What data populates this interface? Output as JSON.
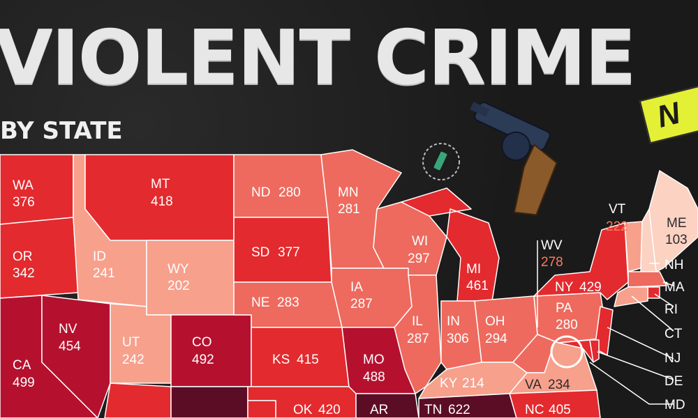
{
  "title": "VIOLENT CRIME",
  "subtitle": "BY STATE",
  "logo": "N",
  "states": {
    "WA": {
      "abbr": "WA",
      "value": "376"
    },
    "OR": {
      "abbr": "OR",
      "value": "342"
    },
    "CA": {
      "abbr": "CA",
      "value": "499"
    },
    "ID": {
      "abbr": "ID",
      "value": "241"
    },
    "NV": {
      "abbr": "NV",
      "value": "454"
    },
    "MT": {
      "abbr": "MT",
      "value": "418"
    },
    "WY": {
      "abbr": "WY",
      "value": "202"
    },
    "UT": {
      "abbr": "UT",
      "value": "242"
    },
    "CO": {
      "abbr": "CO",
      "value": "492"
    },
    "ND": {
      "abbr": "ND",
      "value": "280"
    },
    "SD": {
      "abbr": "SD",
      "value": "377"
    },
    "NE": {
      "abbr": "NE",
      "value": "283"
    },
    "KS": {
      "abbr": "KS",
      "value": "415"
    },
    "OK": {
      "abbr": "OK",
      "value": "420"
    },
    "MN": {
      "abbr": "MN",
      "value": "281"
    },
    "IA": {
      "abbr": "IA",
      "value": "287"
    },
    "MO": {
      "abbr": "MO",
      "value": "488"
    },
    "AR": {
      "abbr": "AR",
      "value": ""
    },
    "WI": {
      "abbr": "WI",
      "value": "297"
    },
    "IL": {
      "abbr": "IL",
      "value": "287"
    },
    "MI": {
      "abbr": "MI",
      "value": "461"
    },
    "IN": {
      "abbr": "IN",
      "value": "306"
    },
    "OH": {
      "abbr": "OH",
      "value": "294"
    },
    "KY": {
      "abbr": "KY",
      "value": "214"
    },
    "TN": {
      "abbr": "TN",
      "value": "622"
    },
    "WV": {
      "abbr": "WV",
      "value": "278"
    },
    "VA": {
      "abbr": "VA",
      "value": "234"
    },
    "NC": {
      "abbr": "NC",
      "value": "405"
    },
    "PA": {
      "abbr": "PA",
      "value": "280"
    },
    "NY": {
      "abbr": "NY",
      "value": "429"
    },
    "VT": {
      "abbr": "VT",
      "value": "222"
    },
    "ME": {
      "abbr": "ME",
      "value": "103"
    },
    "NH": {
      "abbr": "NH",
      "value": ""
    },
    "MA": {
      "abbr": "MA",
      "value": ""
    },
    "RI": {
      "abbr": "RI",
      "value": ""
    },
    "CT": {
      "abbr": "CT",
      "value": ""
    },
    "NJ": {
      "abbr": "NJ",
      "value": ""
    },
    "DE": {
      "abbr": "DE",
      "value": ""
    },
    "MD": {
      "abbr": "MD",
      "value": ""
    }
  },
  "colors": {
    "background": "#1c1c1c",
    "scale_lightest": "#fcd2c2",
    "scale_light": "#f7a08c",
    "scale_mid": "#ee6a5e",
    "scale_strong": "#e32a2e",
    "scale_dark": "#b5112f",
    "scale_darkest": "#5c0d26",
    "title": "#e7e7e7",
    "accent_label": "#ff7a5c",
    "logo": "#e4f036"
  },
  "icons": [
    "revolver-icon",
    "bullet-casing-icon"
  ]
}
